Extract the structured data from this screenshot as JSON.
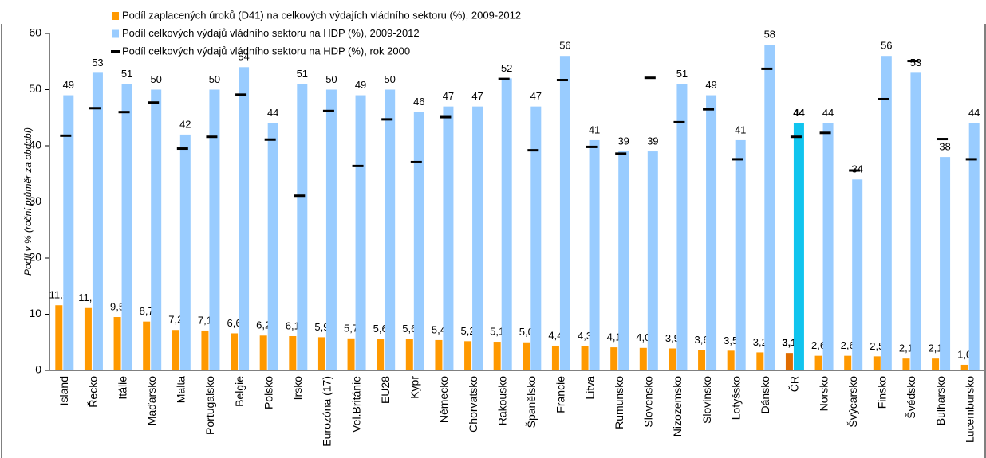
{
  "chart_data": {
    "type": "bar",
    "y_label": "Podíl v % (roční průměr za období)",
    "categories": [
      "Island",
      "Řecko",
      "Itálie",
      "Maďarsko",
      "Malta",
      "Portugalsko",
      "Belgie",
      "Polsko",
      "Irsko",
      "Eurozóna (17)",
      "Vel.Británie",
      "EU28",
      "Kypr",
      "Německo",
      "Chorvatsko",
      "Rakousko",
      "Španělsko",
      "Francie",
      "Litva",
      "Rumunsko",
      "Slovensko",
      "Nizozemsko",
      "Slovinsko",
      "Lotyšsko",
      "Dánsko",
      "ČR",
      "Norsko",
      "Švýcarsko",
      "Finsko",
      "Švédsko",
      "Bulharsko",
      "Lucembursko"
    ],
    "highlight_category": "ČR",
    "series": [
      {
        "name": "Podíl zaplacených úroků (D41) na celkových výdajích vládního sektoru (%), 2009-2012",
        "mark": "bar",
        "color": "#ff9900",
        "highlight_color": "#e06c00",
        "label_color": "#ff9900",
        "values": [
          11.6,
          11.1,
          9.5,
          8.7,
          7.2,
          7.1,
          6.6,
          6.2,
          6.1,
          5.9,
          5.7,
          5.6,
          5.6,
          5.4,
          5.2,
          5.1,
          5.0,
          4.4,
          4.3,
          4.1,
          4.0,
          3.9,
          3.6,
          3.5,
          3.2,
          3.1,
          2.6,
          2.6,
          2.5,
          2.1,
          2.1,
          1.0
        ],
        "value_labels": [
          "11,6",
          "11,1",
          "9,5",
          "8,7",
          "7,2",
          "7,1",
          "6,6",
          "6,2",
          "6,1",
          "5,9",
          "5,7",
          "5,6",
          "5,6",
          "5,4",
          "5,2",
          "5,1",
          "5,0",
          "4,4",
          "4,3",
          "4,1",
          "4,0",
          "3,9",
          "3,6",
          "3,5",
          "3,2",
          "3,1",
          "2,6",
          "2,6",
          "2,5",
          "2,1",
          "2,1",
          "1,0"
        ]
      },
      {
        "name": "Podíl celkových výdajů vládního sektoru na HDP (%), 2009-2012",
        "mark": "bar",
        "color": "#99ccff",
        "highlight_color": "#11c4ee",
        "label_color": "#3366ff",
        "values": [
          49,
          53,
          51,
          50,
          42,
          50,
          54,
          44,
          51,
          50,
          49,
          50,
          46,
          47,
          47,
          52,
          47,
          56,
          41,
          39,
          39,
          51,
          49,
          41,
          58,
          44,
          44,
          34,
          56,
          53,
          38,
          44
        ]
      },
      {
        "name": "Podíl celkových výdajů vládního sektoru na HDP (%), rok 2000",
        "mark": "dash",
        "color": "#000000",
        "values": [
          41.8,
          46.7,
          46.0,
          47.7,
          39.5,
          41.6,
          49.1,
          41.1,
          31.1,
          46.2,
          36.4,
          44.7,
          37.1,
          45.1,
          null,
          51.9,
          39.2,
          51.7,
          39.8,
          38.6,
          52.1,
          44.2,
          46.5,
          37.6,
          53.7,
          41.6,
          42.3,
          35.6,
          48.3,
          55.1,
          41.2,
          37.6
        ]
      }
    ],
    "ylim": [
      0,
      60
    ],
    "yticks": [
      0,
      10,
      20,
      30,
      40,
      50,
      60
    ],
    "legend": "top-left"
  }
}
